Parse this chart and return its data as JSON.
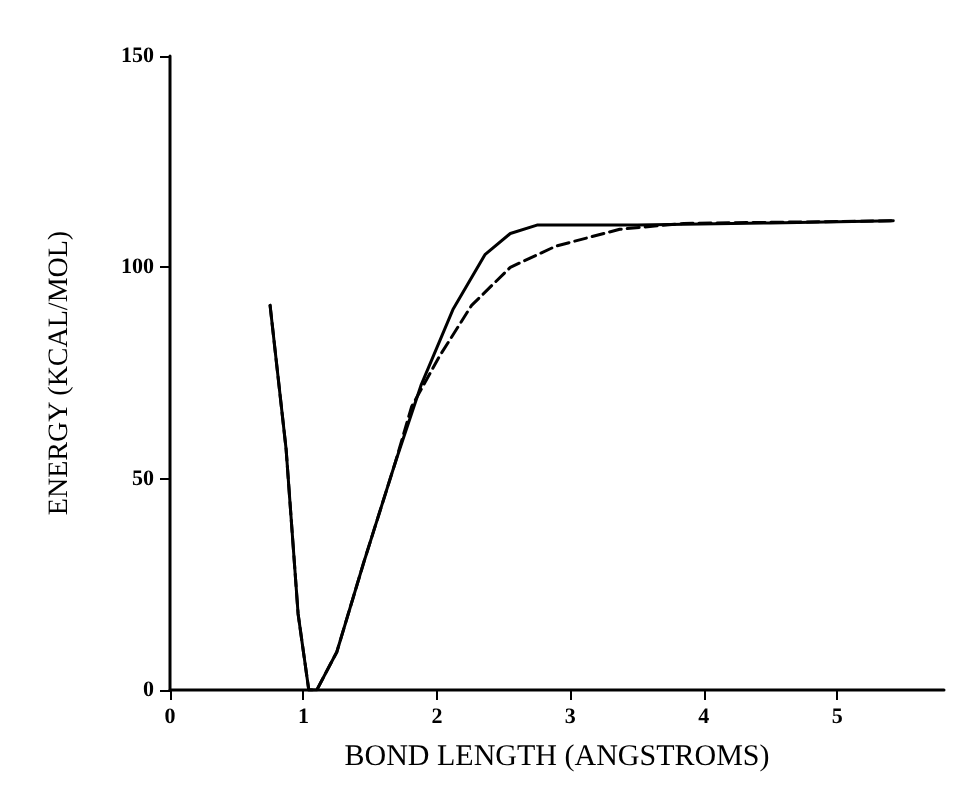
{
  "chart_data": {
    "type": "line",
    "xlabel": "BOND LENGTH (ANGSTROMS)",
    "ylabel": "ENERGY (KCAL/MOL)",
    "xlim": [
      0,
      5.8
    ],
    "xticks": [
      0,
      1,
      2,
      3,
      4,
      5
    ],
    "ylim": [
      0,
      150
    ],
    "yticks": [
      0,
      50,
      100,
      150
    ],
    "grid": false,
    "marker": "none",
    "series": [
      {
        "color": "#000000",
        "line_style": "solid",
        "x": [
          0.75,
          0.87,
          0.96,
          1.04,
          1.1,
          1.25,
          1.45,
          1.69,
          1.88,
          2.12,
          2.36,
          2.55,
          2.75,
          3.5,
          4.5,
          5.42
        ],
        "values": [
          91,
          57,
          18,
          0,
          0,
          9,
          30,
          54,
          72,
          90,
          103,
          108,
          110,
          110,
          110.5,
          111
        ]
      },
      {
        "color": "#000000",
        "line_style": "dashed",
        "x": [
          0.75,
          0.87,
          0.96,
          1.04,
          1.1,
          1.25,
          1.45,
          1.69,
          1.81,
          2.02,
          2.26,
          2.55,
          2.89,
          3.37,
          3.85,
          5.42
        ],
        "values": [
          91,
          57,
          18,
          0,
          0,
          9,
          30,
          54,
          67,
          79,
          91,
          100,
          105,
          109,
          110.4,
          111
        ]
      }
    ]
  }
}
